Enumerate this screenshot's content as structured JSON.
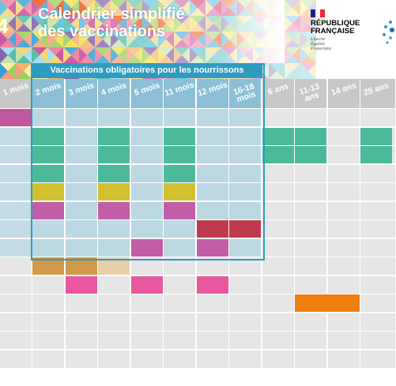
{
  "header": {
    "number": "4",
    "title_line1": "Calendrier simplifié",
    "title_line2": "des vaccinations"
  },
  "logo": {
    "line1": "RÉPUBLIQUE",
    "line2": "FRANÇAISE",
    "motto1": "Liberté",
    "motto2": "Égalité",
    "motto3": "Fraternité",
    "flag_colors": [
      "#002395",
      "#ffffff",
      "#ed2939"
    ]
  },
  "banner": {
    "label": "Vaccinations obligatoires pour les nourrissons"
  },
  "columns": [
    {
      "label": "1 mois"
    },
    {
      "label": "2 mois"
    },
    {
      "label": "3 mois"
    },
    {
      "label": "4 mois"
    },
    {
      "label": "5 mois"
    },
    {
      "label": "11 mois"
    },
    {
      "label": "12 mois"
    },
    {
      "label": "16-18\nmois"
    },
    {
      "label": "6 ans"
    },
    {
      "label": "11-13\nans"
    },
    {
      "label": "14 ans"
    },
    {
      "label": "25 ans"
    }
  ],
  "colors": {
    "grid_bg": "#e6e6e6",
    "oblig_bg": "#bcd8e3",
    "header_col_bg": "#c8c8c8",
    "header_col_oblig_bg": "#8bbfd6",
    "magenta": "#c0579f",
    "green": "#4cb99a",
    "yellow": "#d2c02e",
    "pink": "#c25da8",
    "crimson": "#bf3a4d",
    "orange_tan": "#d09a48",
    "light_tan": "#e7cda7",
    "hot_pink": "#e9579f",
    "orange": "#ee7f0f"
  },
  "vaccine_cells": [
    {
      "row": 0,
      "col": 0,
      "color": "magenta"
    },
    {
      "row": 1,
      "col": 1,
      "color": "green"
    },
    {
      "row": 1,
      "col": 3,
      "color": "green"
    },
    {
      "row": 1,
      "col": 5,
      "color": "green"
    },
    {
      "row": 1,
      "col": 8,
      "color": "green"
    },
    {
      "row": 1,
      "col": 9,
      "color": "green"
    },
    {
      "row": 1,
      "col": 11,
      "color": "green"
    },
    {
      "row": 2,
      "col": 1,
      "color": "green"
    },
    {
      "row": 2,
      "col": 3,
      "color": "green"
    },
    {
      "row": 2,
      "col": 5,
      "color": "green"
    },
    {
      "row": 2,
      "col": 8,
      "color": "green"
    },
    {
      "row": 2,
      "col": 9,
      "color": "green"
    },
    {
      "row": 2,
      "col": 11,
      "color": "green"
    },
    {
      "row": 3,
      "col": 1,
      "color": "green"
    },
    {
      "row": 3,
      "col": 3,
      "color": "green"
    },
    {
      "row": 3,
      "col": 5,
      "color": "green"
    },
    {
      "row": 4,
      "col": 1,
      "color": "yellow"
    },
    {
      "row": 4,
      "col": 3,
      "color": "yellow"
    },
    {
      "row": 4,
      "col": 5,
      "color": "yellow"
    },
    {
      "row": 5,
      "col": 1,
      "color": "pink"
    },
    {
      "row": 5,
      "col": 3,
      "color": "pink"
    },
    {
      "row": 5,
      "col": 5,
      "color": "pink"
    },
    {
      "row": 6,
      "col": 6,
      "color": "crimson"
    },
    {
      "row": 6,
      "col": 7,
      "color": "crimson"
    },
    {
      "row": 7,
      "col": 4,
      "color": "pink"
    },
    {
      "row": 7,
      "col": 6,
      "color": "pink"
    },
    {
      "row": 8,
      "col": 1,
      "color": "orange_tan"
    },
    {
      "row": 8,
      "col": 2,
      "color": "orange_tan"
    },
    {
      "row": 8,
      "col": 3,
      "color": "light_tan"
    },
    {
      "row": 9,
      "col": 2,
      "color": "hot_pink"
    },
    {
      "row": 9,
      "col": 4,
      "color": "hot_pink"
    },
    {
      "row": 9,
      "col": 6,
      "color": "hot_pink"
    },
    {
      "row": 10,
      "col": 9,
      "color": "orange",
      "span": 2
    }
  ]
}
